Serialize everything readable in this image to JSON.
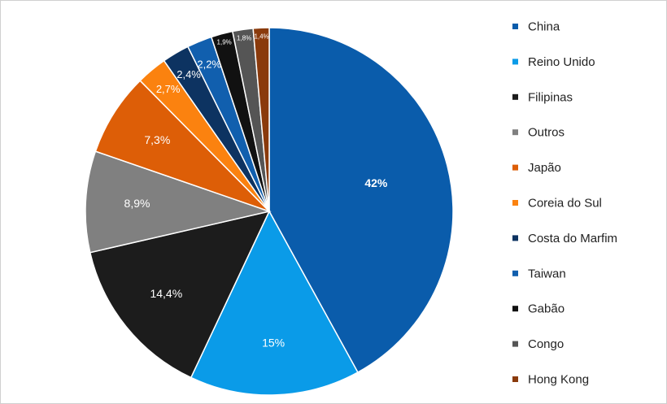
{
  "chart_data": {
    "type": "pie",
    "categories": [
      "China",
      "Reino Unido",
      "Filipinas",
      "Outros",
      "Japão",
      "Coreia do Sul",
      "Costa do Marfim",
      "Taiwan",
      "Gabão",
      "Congo",
      "Hong Kong"
    ],
    "values": [
      42,
      15,
      14.4,
      8.9,
      7.3,
      2.7,
      2.4,
      2.2,
      1.9,
      1.8,
      1.4
    ],
    "value_labels": [
      "42%",
      "15%",
      "14,4%",
      "8,9%",
      "7,3%",
      "2,7%",
      "2,4%",
      "2,2%",
      "1,9%",
      "1,8%",
      "1,4%"
    ],
    "colors": [
      "#0a5cab",
      "#0a9be8",
      "#1c1c1c",
      "#808080",
      "#dd5e07",
      "#fb820f",
      "#0d3361",
      "#115fae",
      "#111111",
      "#555555",
      "#8a3a0c"
    ],
    "legend": "right"
  }
}
